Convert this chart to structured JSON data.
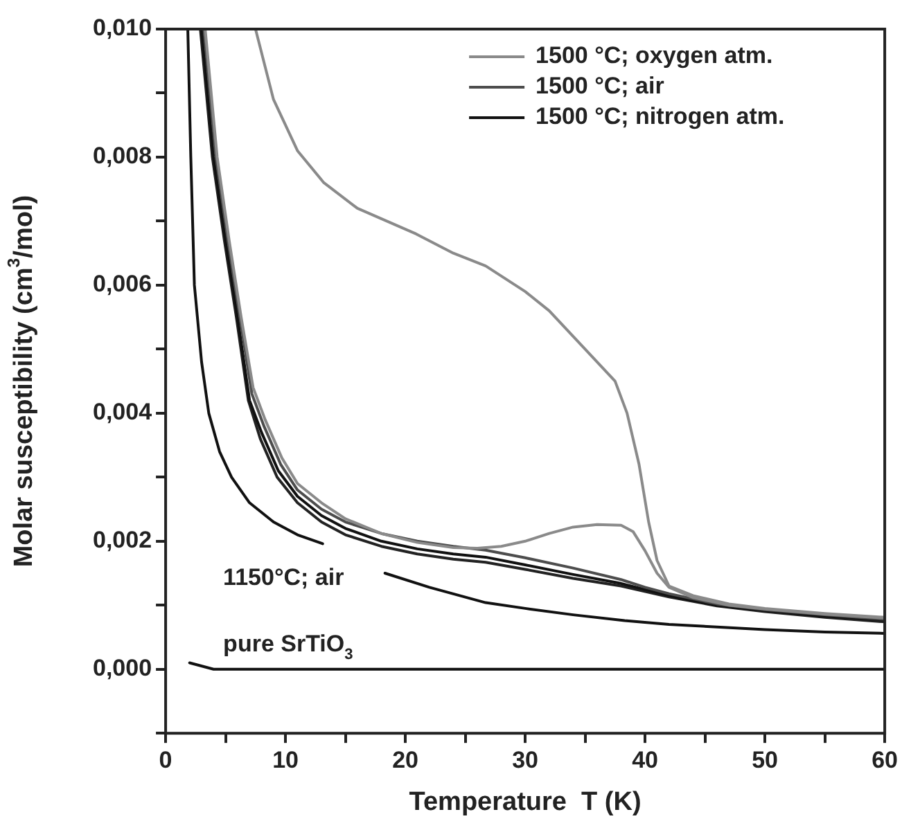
{
  "chart_data": {
    "type": "line",
    "xlabel": "Temperature  T (K)",
    "ylabel": "Molar susceptibility (cm$^{3}$/mol)",
    "xlim": [
      0,
      60
    ],
    "ylim": [
      -0.001,
      0.01
    ],
    "xticks": [
      0,
      {
        "value": 5,
        "label": null
      },
      10,
      {
        "value": 15,
        "label": null
      },
      20,
      {
        "value": 25,
        "label": null
      },
      30,
      {
        "value": 35,
        "label": null
      },
      40,
      {
        "value": 45,
        "label": null
      },
      50,
      {
        "value": 55,
        "label": null
      },
      60
    ],
    "yticks": [
      {
        "value": -0.001,
        "label": null
      },
      {
        "value": 0,
        "label": "0,000"
      },
      {
        "value": 0.001,
        "label": null
      },
      {
        "value": 0.002,
        "label": "0,002"
      },
      {
        "value": 0.003,
        "label": null
      },
      {
        "value": 0.004,
        "label": "0,004"
      },
      {
        "value": 0.005,
        "label": null
      },
      {
        "value": 0.006,
        "label": "0,006"
      },
      {
        "value": 0.007,
        "label": null
      },
      {
        "value": 0.008,
        "label": "0,008"
      },
      {
        "value": 0.009,
        "label": null
      },
      {
        "value": 0.01,
        "label": "0,010"
      }
    ],
    "grid": false,
    "legend": "top right",
    "marker": "none",
    "line_style": "solid",
    "series": [
      {
        "name": "1500 °C; oxygen atm.",
        "color": "#8a8a8a",
        "x": [
          7.5,
          9,
          11,
          13.2,
          16,
          20.9,
          24,
          26.7,
          30,
          32,
          34,
          36,
          37.5,
          38.5,
          39.5,
          40.3,
          41,
          42,
          44,
          47,
          50,
          55,
          60
        ],
        "values": [
          0.01,
          0.0089,
          0.0081,
          0.0076,
          0.0072,
          0.0068,
          0.0065,
          0.0063,
          0.0059,
          0.0056,
          0.0052,
          0.0048,
          0.0045,
          0.004,
          0.0032,
          0.0023,
          0.0017,
          0.0013,
          0.00115,
          0.00102,
          0.00095,
          0.00087,
          0.00081
        ]
      },
      {
        "color": "#8a8a8a",
        "x": [
          3.3,
          4.3,
          5.3,
          6.3,
          7.3,
          8.3,
          9.7,
          11,
          13,
          15,
          18,
          21,
          24,
          26,
          28,
          30,
          32,
          34,
          36,
          38,
          39,
          40,
          41,
          42,
          44,
          47,
          50,
          55,
          60
        ],
        "values": [
          0.01,
          0.008,
          0.0067,
          0.0055,
          0.0044,
          0.0039,
          0.0033,
          0.0029,
          0.0026,
          0.00235,
          0.00212,
          0.00198,
          0.0019,
          0.00189,
          0.00192,
          0.002,
          0.00212,
          0.00222,
          0.00226,
          0.00225,
          0.00215,
          0.00185,
          0.0015,
          0.00128,
          0.00112,
          0.001,
          0.00094,
          0.00086,
          0.0008
        ]
      },
      {
        "name": "1500 °C; air",
        "color": "#4d4d4d",
        "x": [
          3.2,
          3.7,
          4.2,
          5.2,
          6.2,
          7.2,
          8.2,
          9.6,
          11,
          13,
          15,
          18,
          21,
          24,
          26.7,
          30,
          34,
          38,
          40,
          42,
          46,
          50,
          55,
          60
        ],
        "values": [
          0.01,
          0.009,
          0.008,
          0.0067,
          0.0055,
          0.0043,
          0.0038,
          0.0032,
          0.0028,
          0.0025,
          0.0023,
          0.00212,
          0.002,
          0.00192,
          0.00186,
          0.00174,
          0.00158,
          0.0014,
          0.00128,
          0.00118,
          0.00102,
          0.00093,
          0.00085,
          0.00078
        ]
      },
      {
        "name": "1500 °C; nitrogen atm.",
        "color": "#111111",
        "x": [
          3,
          3.5,
          4,
          5,
          6,
          7,
          8,
          9.4,
          11,
          13,
          15,
          18,
          21,
          24,
          26.7,
          30,
          34,
          38,
          42,
          46,
          50,
          55,
          60
        ],
        "values": [
          0.01,
          0.009,
          0.008,
          0.0067,
          0.0055,
          0.0042,
          0.0037,
          0.0031,
          0.0027,
          0.0024,
          0.0022,
          0.002,
          0.00188,
          0.0018,
          0.00175,
          0.00163,
          0.00148,
          0.00134,
          0.00115,
          0.001,
          0.00092,
          0.00083,
          0.00077
        ]
      },
      {
        "color": "#222222",
        "x": [
          2.9,
          3.4,
          3.9,
          4.9,
          5.9,
          6.9,
          7.9,
          9.3,
          11,
          13,
          15,
          18,
          21,
          24,
          26.7,
          30,
          34,
          38,
          42,
          46,
          50,
          55,
          60
        ],
        "values": [
          0.01,
          0.009,
          0.008,
          0.0067,
          0.0055,
          0.0042,
          0.0036,
          0.003,
          0.0026,
          0.0023,
          0.0021,
          0.00192,
          0.0018,
          0.00172,
          0.00167,
          0.00156,
          0.00142,
          0.0013,
          0.00113,
          0.00099,
          0.0009,
          0.00081,
          0.00074
        ]
      },
      {
        "color": "#111111",
        "x": [
          1.85,
          2.1,
          2.4,
          3,
          3.6,
          4.5,
          5.5,
          7,
          9,
          11,
          13.1,
          15,
          18.3,
          22,
          26.7,
          30,
          34,
          38.3,
          42,
          46,
          50,
          55,
          60
        ],
        "values": [
          0.01,
          0.008,
          0.006,
          0.0048,
          0.004,
          0.0034,
          0.003,
          0.0026,
          0.0023,
          0.0021,
          0.00196,
          null,
          0.0015,
          0.00128,
          0.00104,
          0.00095,
          0.00085,
          0.00076,
          0.0007,
          0.00066,
          0.00062,
          0.00058,
          0.00056
        ]
      },
      {
        "color": "#111111",
        "x": [
          2,
          4,
          60
        ],
        "values": [
          0.0001,
          0,
          0
        ]
      }
    ],
    "annotations": [
      "1150°C; air",
      "pure SrTiO$_{3}$"
    ]
  }
}
